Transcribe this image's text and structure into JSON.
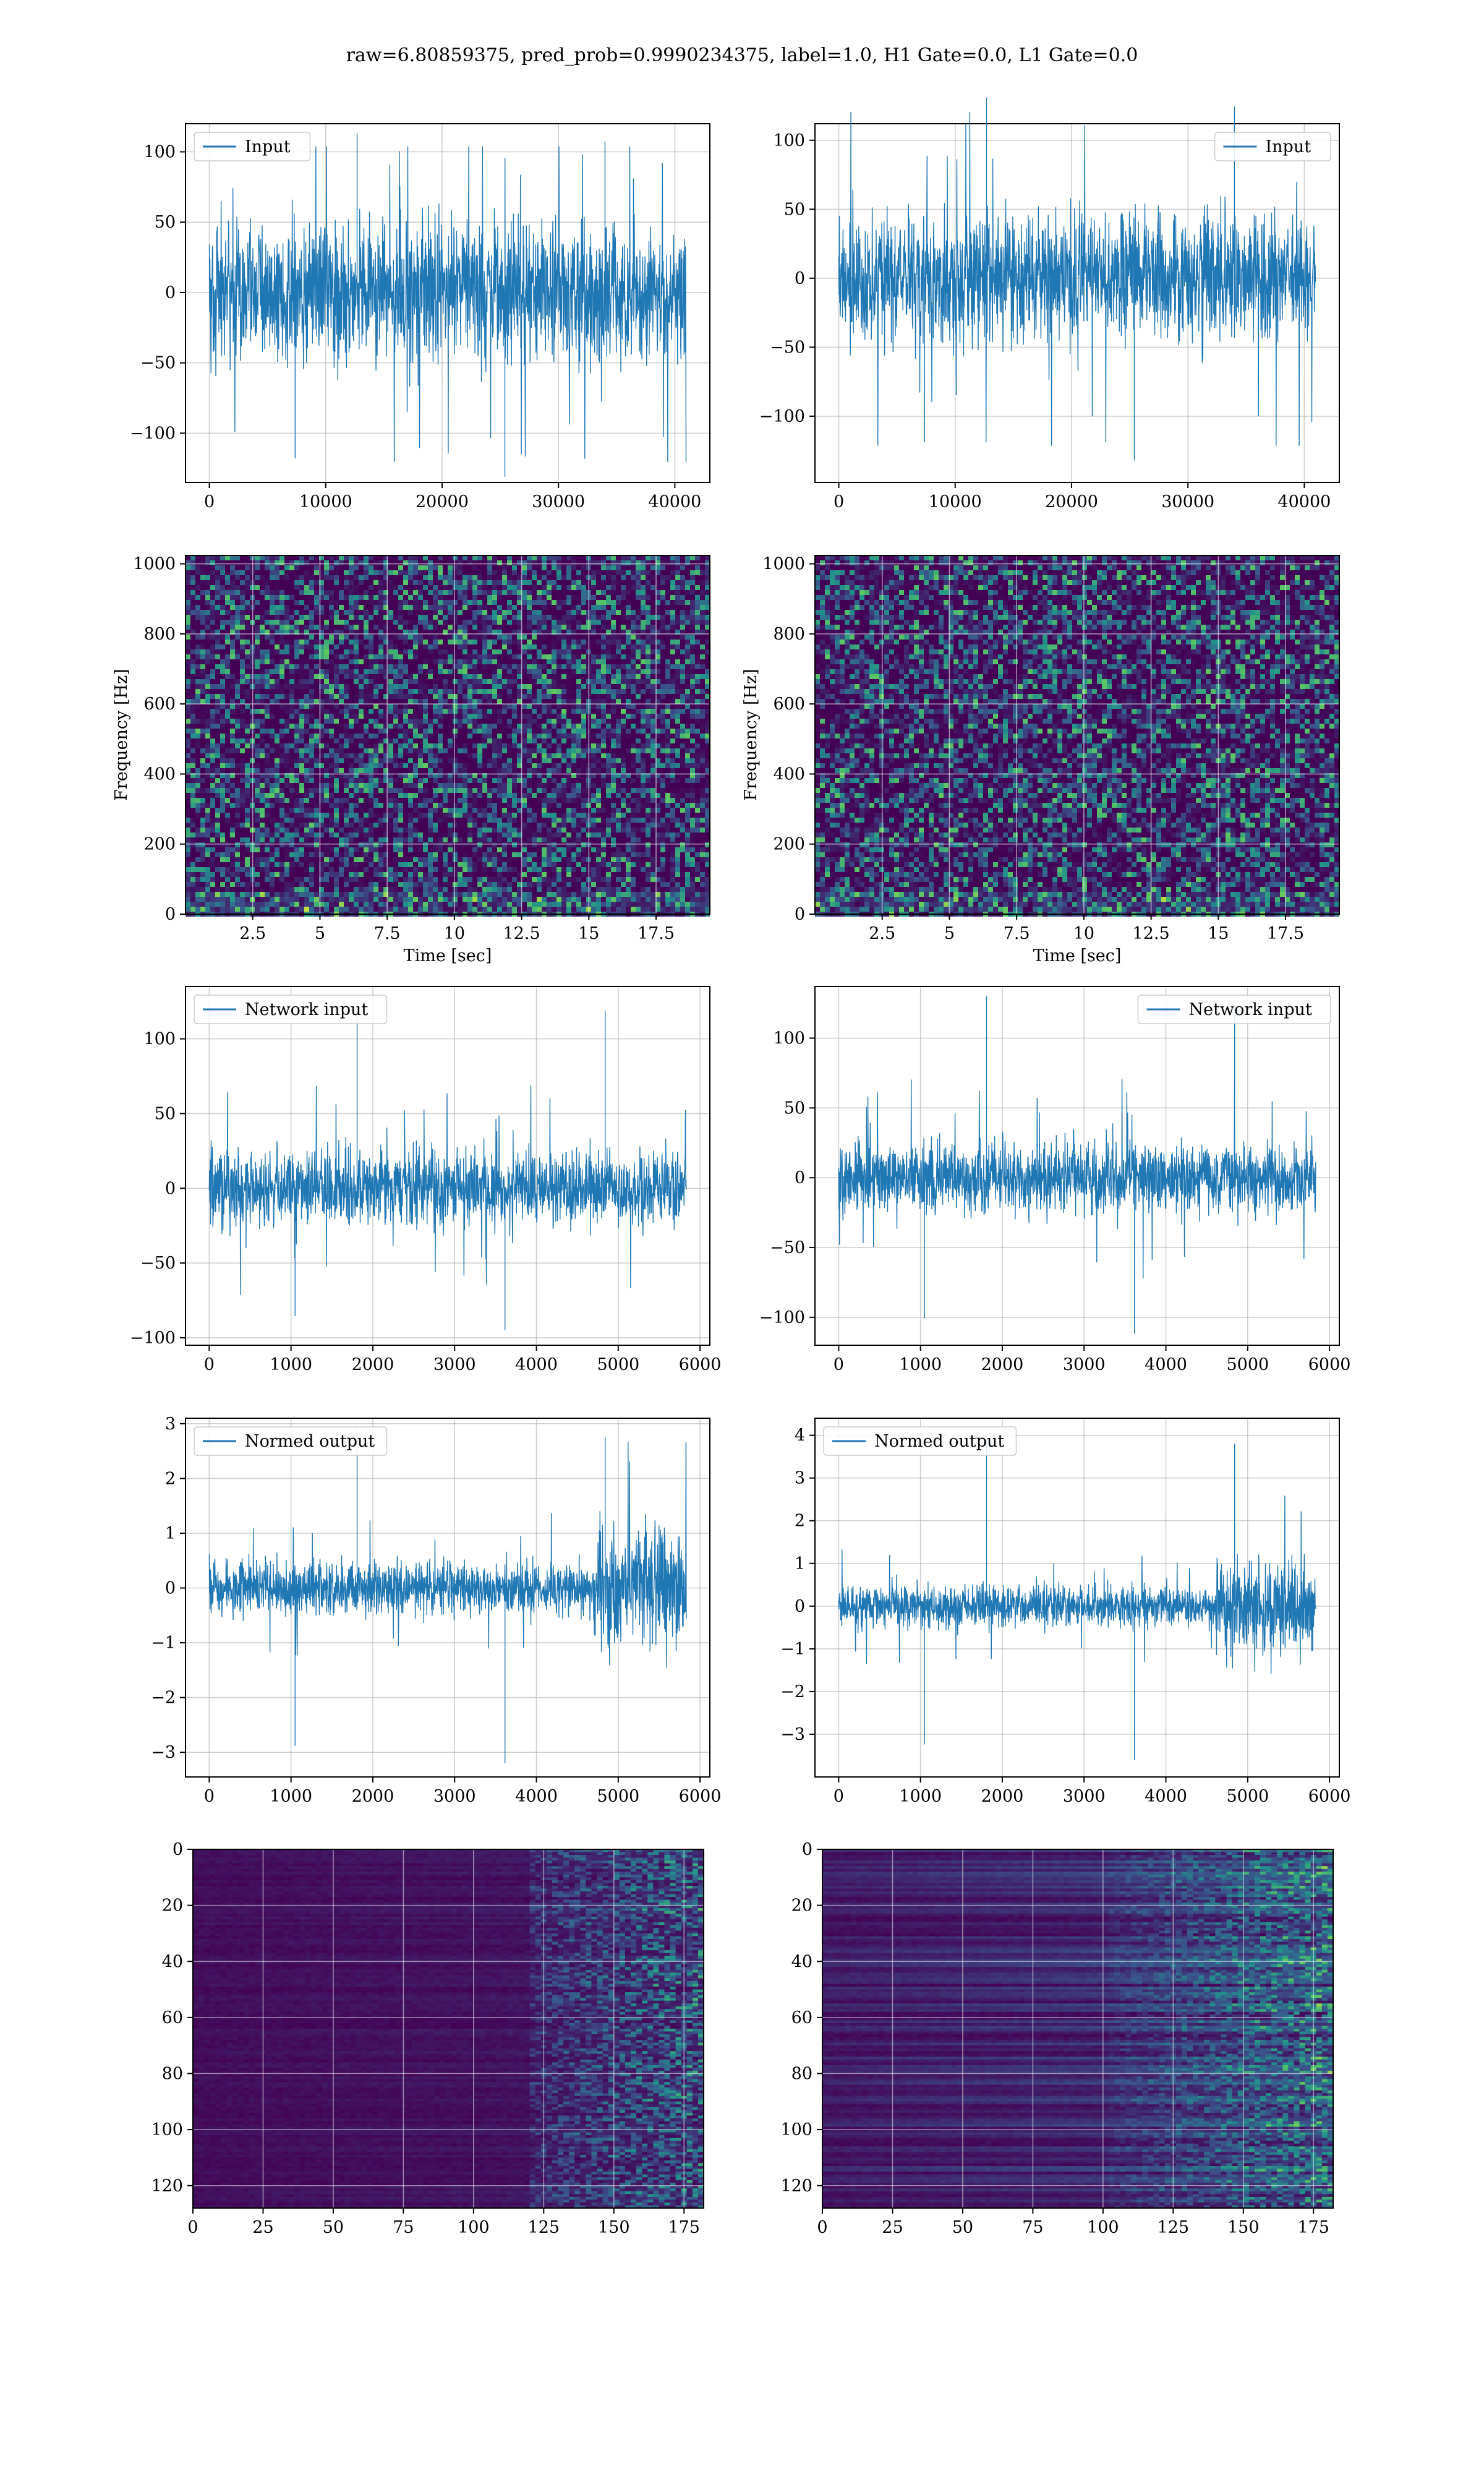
{
  "figure": {
    "suptitle": "raw=6.80859375, pred_prob=0.9990234375, label=1.0, H1 Gate=0.0, L1 Gate=0.0"
  },
  "colors": {
    "line": "#1f77b4",
    "grid": "#b0b0b0",
    "viridis_dark": "#440154",
    "viridis_mid": "#21918c",
    "viridis_bright": "#fde725"
  },
  "chart_data": [
    {
      "id": "input-h1",
      "type": "line",
      "legend": [
        "Input"
      ],
      "legend_loc": "upper left",
      "x": [
        0,
        40960
      ],
      "xlim": [
        -2048,
        43008
      ],
      "ylim": [
        -135,
        120
      ],
      "yticks": [
        -100,
        -50,
        0,
        50,
        100
      ],
      "xticks": [
        0,
        10000,
        20000,
        30000,
        40000
      ],
      "envelope": {
        "core": 62,
        "max_peak": 113,
        "min_peak": -131
      },
      "grid": true
    },
    {
      "id": "input-l1",
      "type": "line",
      "legend": [
        "Input"
      ],
      "legend_loc": "upper right",
      "x": [
        0,
        40960
      ],
      "xlim": [
        -2048,
        43008
      ],
      "ylim": [
        -148,
        112
      ],
      "yticks": [
        -100,
        -50,
        0,
        50,
        100
      ],
      "xticks": [
        0,
        10000,
        20000,
        30000,
        40000
      ],
      "envelope": {
        "core": 58,
        "max_peak": 131,
        "min_peak": -132
      },
      "grid": true
    },
    {
      "id": "spec-h1",
      "type": "heatmap",
      "xlabel": "Time [sec]",
      "ylabel": "Frequency [Hz]",
      "xlim": [
        0,
        19.5
      ],
      "ylim": [
        0,
        1024
      ],
      "xticks": [
        2.5,
        5.0,
        7.5,
        10.0,
        12.5,
        15.0,
        17.5
      ],
      "yticks": [
        0,
        200,
        400,
        600,
        800,
        1000
      ],
      "colormap": "viridis",
      "grid": true
    },
    {
      "id": "spec-l1",
      "type": "heatmap",
      "xlabel": "Time [sec]",
      "ylabel": "Frequency [Hz]",
      "xlim": [
        0,
        19.5
      ],
      "ylim": [
        0,
        1024
      ],
      "xticks": [
        2.5,
        5.0,
        7.5,
        10.0,
        12.5,
        15.0,
        17.5
      ],
      "yticks": [
        0,
        200,
        400,
        600,
        800,
        1000
      ],
      "colormap": "viridis",
      "grid": true
    },
    {
      "id": "net-h1",
      "type": "line",
      "legend": [
        "Network input"
      ],
      "legend_loc": "upper left",
      "x": [
        0,
        5832
      ],
      "xlim": [
        -290,
        6120
      ],
      "ylim": [
        -105,
        135
      ],
      "yticks": [
        -100,
        -50,
        0,
        50,
        100
      ],
      "xticks": [
        0,
        1000,
        2000,
        3000,
        4000,
        5000,
        6000
      ],
      "envelope": {
        "core": 32,
        "max_peak": 125,
        "min_peak": -95
      },
      "grid": true
    },
    {
      "id": "net-l1",
      "type": "line",
      "legend": [
        "Network input"
      ],
      "legend_loc": "upper right",
      "x": [
        0,
        5832
      ],
      "xlim": [
        -290,
        6120
      ],
      "ylim": [
        -120,
        137
      ],
      "yticks": [
        -100,
        -50,
        0,
        50,
        100
      ],
      "xticks": [
        0,
        1000,
        2000,
        3000,
        4000,
        5000,
        6000
      ],
      "envelope": {
        "core": 32,
        "max_peak": 130,
        "min_peak": -112
      },
      "grid": true
    },
    {
      "id": "norm-h1",
      "type": "line",
      "legend": [
        "Normed output"
      ],
      "legend_loc": "upper left",
      "x": [
        0,
        5832
      ],
      "xlim": [
        -290,
        6120
      ],
      "ylim": [
        -3.45,
        3.1
      ],
      "yticks": [
        -3,
        -2,
        -1,
        0,
        1,
        2,
        3
      ],
      "xticks": [
        0,
        1000,
        2000,
        3000,
        4000,
        5000,
        6000
      ],
      "envelope": {
        "core": 0.6,
        "burst_start": 4700,
        "burst_core": 1.4,
        "max_peak": 2.9,
        "min_peak": -3.2
      },
      "grid": true
    },
    {
      "id": "norm-l1",
      "type": "line",
      "legend": [
        "Normed output"
      ],
      "legend_loc": "upper left",
      "x": [
        0,
        5832
      ],
      "xlim": [
        -290,
        6120
      ],
      "ylim": [
        -4.0,
        4.4
      ],
      "yticks": [
        -3,
        -2,
        -1,
        0,
        1,
        2,
        3,
        4
      ],
      "xticks": [
        0,
        1000,
        2000,
        3000,
        4000,
        5000,
        6000
      ],
      "envelope": {
        "core": 0.6,
        "burst_start": 4600,
        "burst_core": 1.4,
        "max_peak": 4.0,
        "min_peak": -3.6
      },
      "grid": true
    },
    {
      "id": "feat-h1",
      "type": "heatmap",
      "xlim": [
        0,
        182
      ],
      "ylim": [
        128,
        0
      ],
      "xticks": [
        0,
        25,
        50,
        75,
        100,
        125,
        150,
        175
      ],
      "yticks": [
        0,
        20,
        40,
        60,
        80,
        100,
        120
      ],
      "colormap": "viridis",
      "grid": true
    },
    {
      "id": "feat-l1",
      "type": "heatmap",
      "xlim": [
        0,
        182
      ],
      "ylim": [
        128,
        0
      ],
      "xticks": [
        0,
        25,
        50,
        75,
        100,
        125,
        150,
        175
      ],
      "yticks": [
        0,
        20,
        40,
        60,
        80,
        100,
        120
      ],
      "colormap": "viridis",
      "grid": true
    }
  ]
}
